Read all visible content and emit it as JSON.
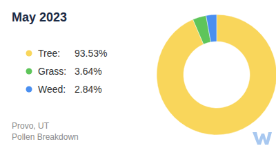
{
  "chart_data": {
    "type": "pie",
    "title": "May 2023",
    "categories": [
      "Tree:",
      "Grass:",
      "Weed:"
    ],
    "values": [
      93.53,
      3.64,
      2.84
    ],
    "value_labels": [
      "93.53%",
      "3.64%",
      "2.84%"
    ],
    "colors": [
      "#f9d65b",
      "#5ec55a",
      "#4a8ff0"
    ],
    "legend": "left",
    "annotations": [
      "Provo, UT",
      "Pollen Breakdown"
    ]
  }
}
